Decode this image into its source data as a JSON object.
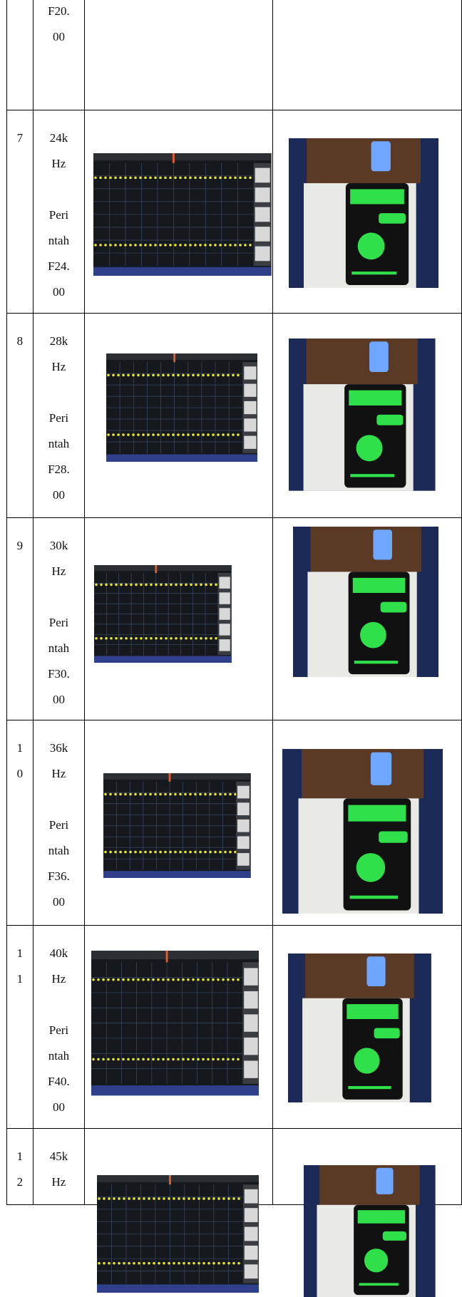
{
  "table": {
    "rows": [
      {
        "command_lines": [
          "F20.",
          "00"
        ]
      },
      {
        "number_lines": [
          "7"
        ],
        "frequency_lines": [
          "24k",
          "Hz"
        ],
        "command_lines": [
          "Peri",
          "ntah",
          "F24.",
          "00"
        ]
      },
      {
        "number_lines": [
          "8"
        ],
        "frequency_lines": [
          "28k",
          "Hz"
        ],
        "command_lines": [
          "Peri",
          "ntah",
          "F28.",
          "00"
        ]
      },
      {
        "number_lines": [
          "9"
        ],
        "frequency_lines": [
          "30k",
          "Hz"
        ],
        "command_lines": [
          "Peri",
          "ntah",
          "F30.",
          "00"
        ]
      },
      {
        "number_lines": [
          "1",
          "0"
        ],
        "frequency_lines": [
          "36k",
          "Hz"
        ],
        "command_lines": [
          "Peri",
          "ntah",
          "F36.",
          "00"
        ]
      },
      {
        "number_lines": [
          "1",
          "1"
        ],
        "frequency_lines": [
          "40k",
          "Hz"
        ],
        "command_lines": [
          "Peri",
          "ntah",
          "F40.",
          "00"
        ]
      },
      {
        "number_lines": [
          "1",
          "2"
        ],
        "frequency_lines": [
          "45k",
          "Hz"
        ]
      }
    ]
  }
}
